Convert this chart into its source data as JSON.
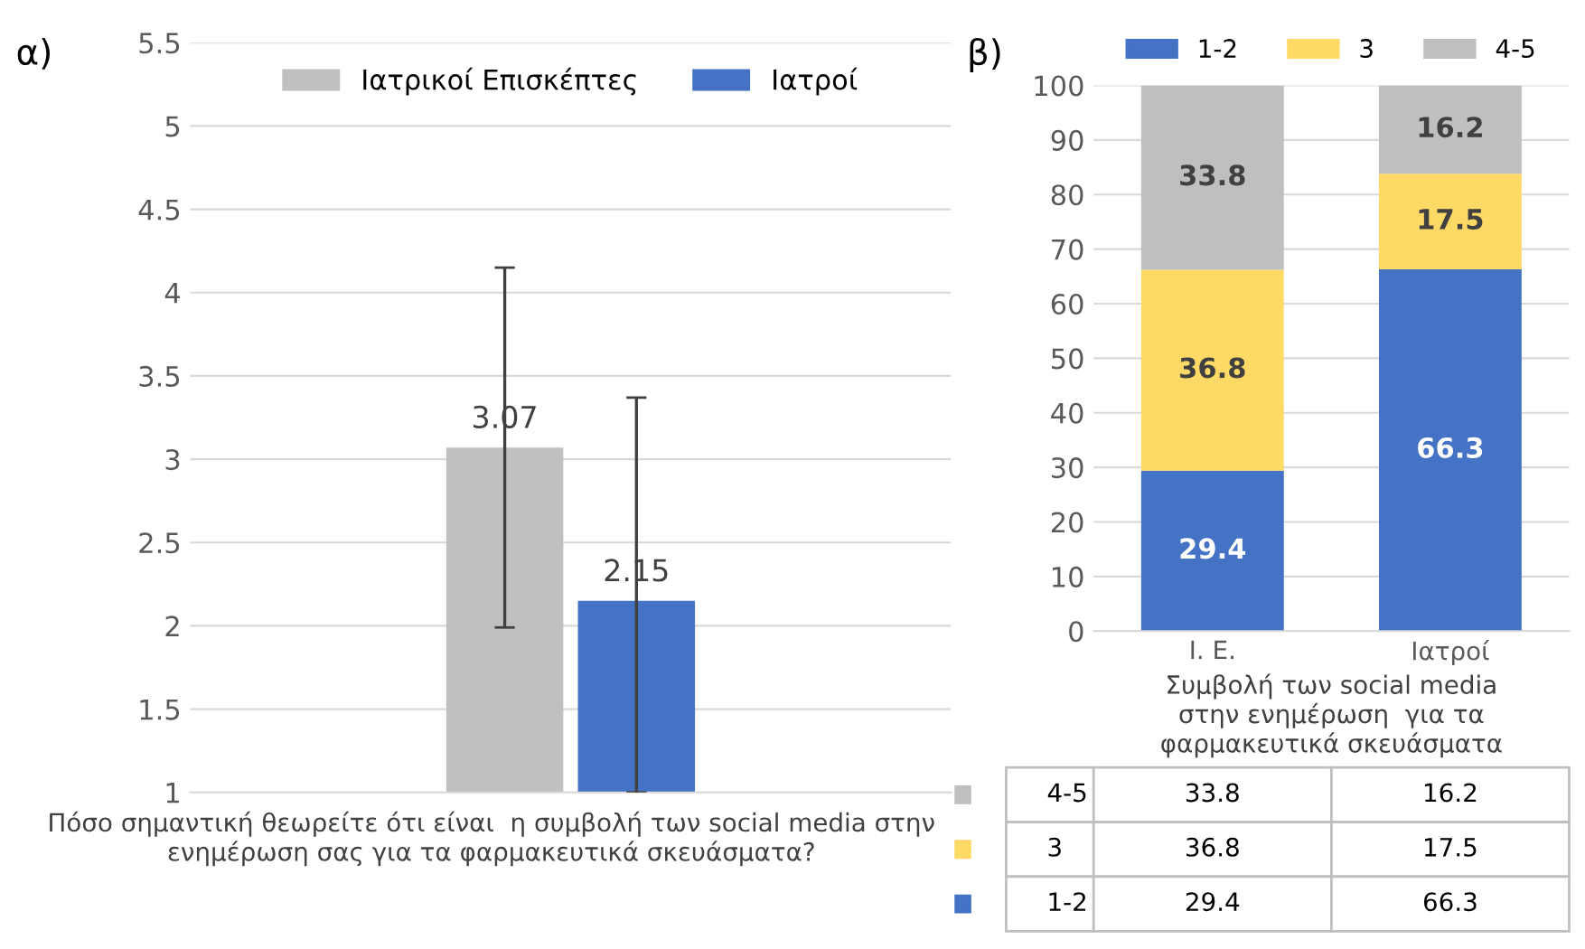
{
  "chart_data": [
    {
      "type": "bar",
      "categories": [
        null
      ],
      "xlabel": "Πόσο σημαντική θεωρείτε ότι είναι  η συμβολή των social media στην ενημέρωση σας για τα φαρμακευτικά σκευάσματα?",
      "series": [
        {
          "name": "Ιατρικοί Επισκέπτες",
          "color": "#c0c0c0",
          "values": [
            3.07
          ],
          "errors": [
            [
              1.99,
              4.15
            ]
          ]
        },
        {
          "name": "Ιατροί",
          "color": "#4472c4",
          "values": [
            2.15
          ],
          "errors": [
            [
              1.0,
              3.37
            ]
          ]
        }
      ],
      "ylim": [
        1,
        5.5
      ],
      "yticks": [
        1,
        1.5,
        2,
        2.5,
        3,
        3.5,
        4,
        4.5,
        5,
        5.5
      ],
      "grid": "y",
      "legend": "top",
      "data_labels": true,
      "annotations": [
        "α)"
      ]
    },
    {
      "type": "bar",
      "stacked": true,
      "categories": [
        "Ι. Ε.",
        "Ιατροί"
      ],
      "xlabel": "Συμβολή των social media\nστην ενημέρωση  για τα\nφαρμακευτικά σκευάσματα",
      "series": [
        {
          "name": "1-2",
          "color": "#4472c4",
          "values": [
            29.4,
            66.3
          ],
          "value_labels": [
            "29.4",
            "66.3"
          ]
        },
        {
          "name": "3",
          "color": "#ffd966",
          "values": [
            36.8,
            17.5
          ],
          "value_labels": [
            "36.8",
            "17.5"
          ]
        },
        {
          "name": "4-5",
          "color": "#bfbfbf",
          "values": [
            33.8,
            16.2
          ],
          "value_labels": [
            "33.8",
            "16.2"
          ]
        }
      ],
      "ylim": [
        0,
        100
      ],
      "yticks": [
        0,
        10,
        20,
        30,
        40,
        50,
        60,
        70,
        80,
        90,
        100
      ],
      "grid": "y",
      "legend": "top",
      "data_labels": true,
      "annotations": [
        "β)",
        "33.8",
        "16.2",
        "36.8",
        "17.5",
        "29.4",
        "66.3"
      ]
    }
  ]
}
